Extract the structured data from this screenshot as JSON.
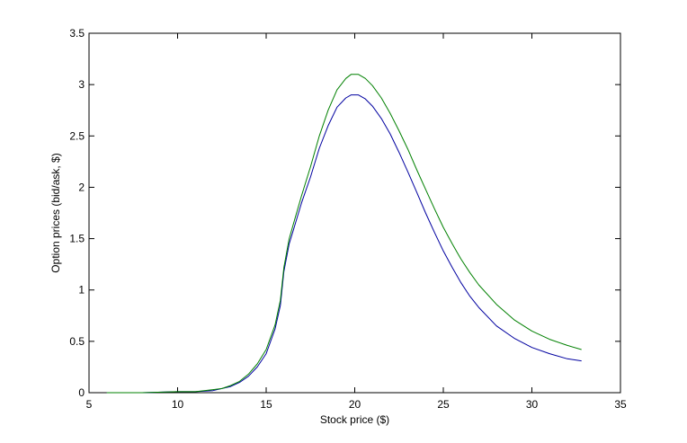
{
  "chart_data": {
    "type": "line",
    "title": "",
    "xlabel": "Stock price ($)",
    "ylabel": "Option prices (bid/ask, $)",
    "xlim": [
      5,
      35
    ],
    "ylim": [
      0,
      3.5
    ],
    "xticks": [
      5,
      10,
      15,
      20,
      25,
      30,
      35
    ],
    "yticks": [
      0,
      0.5,
      1,
      1.5,
      2,
      2.5,
      3,
      3.5
    ],
    "grid": false,
    "legend": "none",
    "series": [
      {
        "color": "#0000a0",
        "x": [
          6.0,
          8.0,
          10.0,
          11.0,
          12.0,
          12.5,
          13.0,
          13.5,
          14.0,
          14.5,
          15.0,
          15.5,
          15.8,
          16.0,
          16.3,
          16.6,
          17.0,
          17.5,
          18.0,
          18.5,
          19.0,
          19.5,
          19.8,
          20.2,
          20.6,
          21.0,
          21.5,
          22.0,
          22.5,
          23.0,
          23.5,
          24.0,
          24.5,
          25.0,
          25.5,
          26.0,
          26.5,
          27.0,
          28.0,
          29.0,
          30.0,
          31.0,
          32.0,
          32.8
        ],
        "y": [
          0.0,
          0.0,
          0.01,
          0.01,
          0.02,
          0.04,
          0.06,
          0.1,
          0.16,
          0.25,
          0.38,
          0.62,
          0.85,
          1.18,
          1.45,
          1.62,
          1.85,
          2.1,
          2.38,
          2.6,
          2.78,
          2.87,
          2.9,
          2.9,
          2.86,
          2.79,
          2.67,
          2.52,
          2.34,
          2.15,
          1.95,
          1.75,
          1.56,
          1.38,
          1.22,
          1.07,
          0.94,
          0.83,
          0.65,
          0.53,
          0.44,
          0.38,
          0.33,
          0.31
        ]
      },
      {
        "color": "#008000",
        "x": [
          6.0,
          8.0,
          10.0,
          11.0,
          12.0,
          12.5,
          13.0,
          13.5,
          14.0,
          14.5,
          15.0,
          15.5,
          15.8,
          16.0,
          16.3,
          16.6,
          17.0,
          17.5,
          18.0,
          18.5,
          19.0,
          19.5,
          19.8,
          20.2,
          20.6,
          21.0,
          21.5,
          22.0,
          22.5,
          23.0,
          23.5,
          24.0,
          24.5,
          25.0,
          25.5,
          26.0,
          26.5,
          27.0,
          28.0,
          29.0,
          30.0,
          31.0,
          32.0,
          32.8
        ],
        "y": [
          0.0,
          0.0,
          0.01,
          0.01,
          0.03,
          0.04,
          0.07,
          0.11,
          0.18,
          0.28,
          0.42,
          0.66,
          0.9,
          1.22,
          1.5,
          1.68,
          1.92,
          2.2,
          2.5,
          2.75,
          2.95,
          3.06,
          3.1,
          3.1,
          3.06,
          2.99,
          2.87,
          2.72,
          2.55,
          2.37,
          2.17,
          1.98,
          1.79,
          1.61,
          1.45,
          1.3,
          1.17,
          1.05,
          0.86,
          0.71,
          0.6,
          0.52,
          0.46,
          0.42
        ]
      }
    ]
  }
}
